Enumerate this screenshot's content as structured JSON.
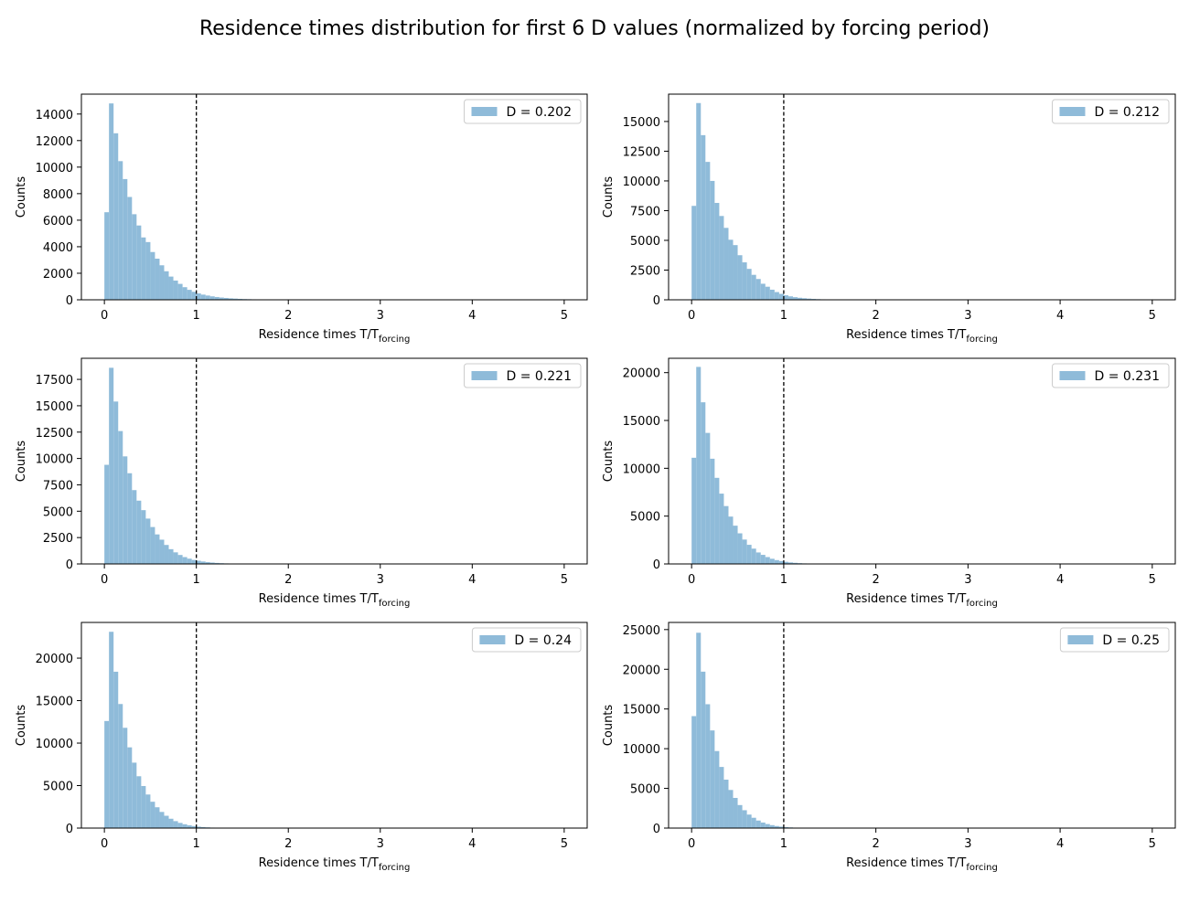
{
  "figure": {
    "title": "Residence times distribution for first 6 D values (normalized by forcing period)"
  },
  "style": {
    "bar_color": "#8fbbd9",
    "dashed_line_color": "#000000",
    "legend_position": "top-right"
  },
  "chart_data": [
    {
      "type": "bar",
      "legend": "D = 0.202",
      "xlabel_main": "Residence times T/T",
      "xlabel_sub": "forcing",
      "ylabel": "Counts",
      "xlim": [
        -0.25,
        5.25
      ],
      "xticks": [
        0,
        1,
        2,
        3,
        4,
        5
      ],
      "ylim": [
        0,
        15500
      ],
      "yticks": [
        0,
        2000,
        4000,
        6000,
        8000,
        10000,
        12000,
        14000
      ],
      "vline_x": 1,
      "bin_width": 0.05,
      "bin_start": 0,
      "counts": [
        6600,
        14800,
        12550,
        10450,
        9100,
        7750,
        6450,
        5600,
        4700,
        4350,
        3600,
        3100,
        2600,
        2150,
        1750,
        1450,
        1200,
        950,
        750,
        600,
        480,
        390,
        320,
        260,
        210,
        170,
        140,
        110,
        90,
        70,
        55,
        45,
        35,
        28,
        22,
        18,
        14,
        11,
        9,
        7
      ]
    },
    {
      "type": "bar",
      "legend": "D = 0.212",
      "xlabel_main": "Residence times T/T",
      "xlabel_sub": "forcing",
      "ylabel": "Counts",
      "xlim": [
        -0.25,
        5.25
      ],
      "xticks": [
        0,
        1,
        2,
        3,
        4,
        5
      ],
      "ylim": [
        0,
        17300
      ],
      "yticks": [
        0,
        2500,
        5000,
        7500,
        10000,
        12500,
        15000
      ],
      "yticklabels": [
        "0",
        "2500",
        "5000",
        "7500",
        "10000",
        "12500",
        "15000"
      ],
      "vline_x": 1,
      "bin_width": 0.05,
      "bin_start": 0,
      "counts": [
        7900,
        16550,
        13850,
        11600,
        10000,
        8150,
        7050,
        6050,
        5050,
        4600,
        3750,
        3150,
        2600,
        2100,
        1750,
        1350,
        1100,
        850,
        650,
        500,
        380,
        290,
        220,
        170,
        130,
        100,
        75,
        55,
        40,
        30,
        22,
        16,
        12,
        9,
        7,
        5
      ]
    },
    {
      "type": "bar",
      "legend": "D = 0.221",
      "xlabel_main": "Residence times T/T",
      "xlabel_sub": "forcing",
      "ylabel": "Counts",
      "xlim": [
        -0.25,
        5.25
      ],
      "xticks": [
        0,
        1,
        2,
        3,
        4,
        5
      ],
      "ylim": [
        0,
        19500
      ],
      "yticks": [
        0,
        2500,
        5000,
        7500,
        10000,
        12500,
        15000,
        17500
      ],
      "vline_x": 1,
      "bin_width": 0.05,
      "bin_start": 0,
      "counts": [
        9400,
        18600,
        15400,
        12600,
        10200,
        8600,
        7000,
        6000,
        5100,
        4300,
        3500,
        2800,
        2300,
        1800,
        1400,
        1100,
        850,
        650,
        500,
        380,
        300,
        230,
        170,
        130,
        95,
        70,
        50,
        36,
        26,
        18,
        13,
        9,
        6
      ]
    },
    {
      "type": "bar",
      "legend": "D = 0.231",
      "xlabel_main": "Residence times T/T",
      "xlabel_sub": "forcing",
      "ylabel": "Counts",
      "xlim": [
        -0.25,
        5.25
      ],
      "xticks": [
        0,
        1,
        2,
        3,
        4,
        5
      ],
      "ylim": [
        0,
        21500
      ],
      "yticks": [
        0,
        5000,
        10000,
        15000,
        20000
      ],
      "vline_x": 1,
      "bin_width": 0.05,
      "bin_start": 0,
      "counts": [
        11100,
        20600,
        16900,
        13700,
        11000,
        9000,
        7350,
        6050,
        4950,
        4000,
        3200,
        2550,
        2000,
        1600,
        1200,
        950,
        720,
        540,
        400,
        300,
        220,
        160,
        115,
        80,
        55,
        38,
        26,
        18,
        12,
        8
      ]
    },
    {
      "type": "bar",
      "legend": "D = 0.24",
      "xlabel_main": "Residence times T/T",
      "xlabel_sub": "forcing",
      "ylabel": "Counts",
      "xlim": [
        -0.25,
        5.25
      ],
      "xticks": [
        0,
        1,
        2,
        3,
        4,
        5
      ],
      "ylim": [
        0,
        24200
      ],
      "yticks": [
        0,
        5000,
        10000,
        15000,
        20000
      ],
      "vline_x": 1,
      "bin_width": 0.05,
      "bin_start": 0,
      "counts": [
        12600,
        23100,
        18400,
        14600,
        11800,
        9500,
        7700,
        6100,
        4950,
        3950,
        3100,
        2450,
        1900,
        1450,
        1100,
        820,
        610,
        450,
        330,
        240,
        170,
        120,
        85,
        58,
        40,
        27,
        18,
        12,
        8
      ]
    },
    {
      "type": "bar",
      "legend": "D = 0.25",
      "xlabel_main": "Residence times T/T",
      "xlabel_sub": "forcing",
      "ylabel": "Counts",
      "xlim": [
        -0.25,
        5.25
      ],
      "xticks": [
        0,
        1,
        2,
        3,
        4,
        5
      ],
      "ylim": [
        0,
        25900
      ],
      "yticks": [
        0,
        5000,
        10000,
        15000,
        20000,
        25000
      ],
      "vline_x": 1,
      "bin_width": 0.05,
      "bin_start": 0,
      "counts": [
        14100,
        24600,
        19700,
        15600,
        12300,
        9700,
        7700,
        6100,
        4800,
        3800,
        2900,
        2250,
        1700,
        1300,
        950,
        700,
        510,
        370,
        260,
        180,
        125,
        85,
        58,
        38,
        25,
        16,
        10,
        6
      ]
    }
  ]
}
